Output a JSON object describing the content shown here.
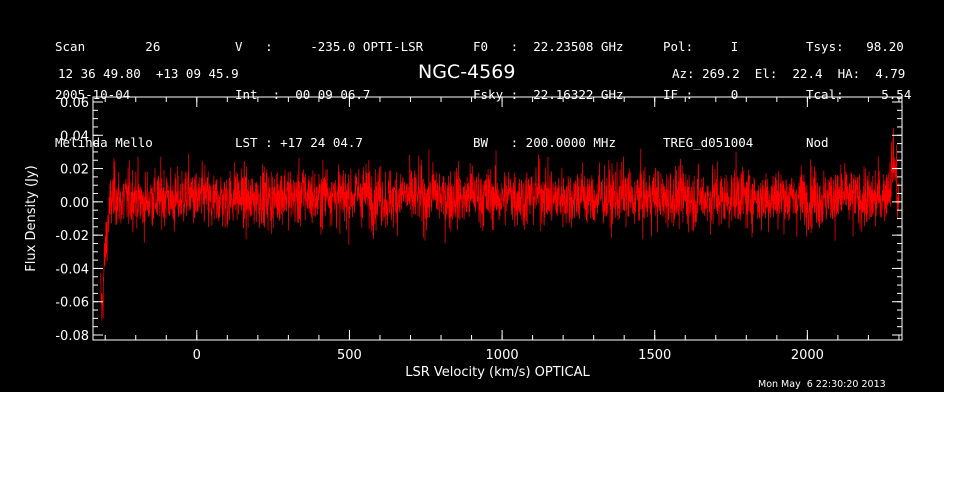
{
  "header": {
    "col1": [
      "Scan        26",
      "2005-10-04",
      "Melinda Mello"
    ],
    "col2": [
      "V   :     -235.0 OPTI-LSR",
      "Int  :  00 09 06.7",
      "LST : +17 24 04.7"
    ],
    "col3": [
      "F0   :  22.23508 GHz",
      "Fsky :  22.16322 GHz",
      "BW   : 200.0000 MHz"
    ],
    "col4": [
      "Pol:     I",
      "IF :     0",
      "TREG_d051004"
    ],
    "col5": [
      "Tsys:   98.20",
      "Tcal:     5.54",
      "Nod"
    ],
    "coords": "12 36 49.80  +13 09 45.9",
    "source": "NGC-4569",
    "azel": "Az: 269.2  El:  22.4  HA:  4.79",
    "timestamp": "Mon May  6 22:30:20 2013"
  },
  "colors": {
    "background": "#000000",
    "axes": "#ffffff",
    "trace": "#ff0000",
    "page": "#ffffff"
  },
  "chart_data": {
    "type": "line",
    "title": "NGC-4569",
    "xlabel": "LSR Velocity (km/s) OPTICAL",
    "ylabel": "Flux Density (Jy)",
    "xlim": [
      -340,
      2310
    ],
    "ylim": [
      -0.083,
      0.063
    ],
    "x_ticks": [
      0,
      500,
      1000,
      1500,
      2000
    ],
    "x_tick_labels": [
      "0",
      "500",
      "1000",
      "1500",
      "2000"
    ],
    "y_ticks": [
      -0.08,
      -0.06,
      -0.04,
      -0.02,
      0.0,
      0.02,
      0.04,
      0.06
    ],
    "y_tick_labels": [
      "-0.08",
      "-0.06",
      "-0.04",
      "-0.02",
      "0.00",
      "0.02",
      "0.04",
      "0.06"
    ],
    "x_minor_step": 100,
    "y_minor_step": 0.005,
    "grid": false,
    "series": [
      {
        "color": "#ff0000",
        "x": [
          -315,
          -310,
          -305,
          -300,
          -295,
          -290,
          -280,
          -270,
          -260,
          -250,
          -225,
          -200,
          -175,
          -150,
          -125,
          -100,
          -75,
          -50,
          -25,
          0,
          25,
          50,
          75,
          100,
          125,
          150,
          175,
          200,
          225,
          250,
          275,
          300,
          325,
          350,
          375,
          400,
          425,
          450,
          475,
          500,
          525,
          550,
          575,
          600,
          625,
          650,
          675,
          700,
          725,
          750,
          775,
          800,
          825,
          850,
          875,
          900,
          925,
          950,
          975,
          1000,
          1025,
          1050,
          1075,
          1100,
          1125,
          1150,
          1175,
          1200,
          1225,
          1250,
          1275,
          1300,
          1325,
          1350,
          1375,
          1400,
          1425,
          1450,
          1475,
          1500,
          1525,
          1550,
          1575,
          1600,
          1625,
          1650,
          1675,
          1700,
          1725,
          1750,
          1775,
          1800,
          1825,
          1850,
          1875,
          1900,
          1925,
          1950,
          1975,
          2000,
          2025,
          2050,
          2075,
          2100,
          2125,
          2150,
          2175,
          2200,
          2225,
          2250,
          2270,
          2280,
          2290,
          2295,
          2300
        ],
        "y": [
          -0.055,
          -0.065,
          -0.045,
          -0.03,
          -0.02,
          -0.01,
          0.0,
          0.005,
          0.003,
          0.0,
          0.002,
          0.004,
          -0.002,
          0.003,
          0.001,
          0.005,
          -0.001,
          0.002,
          0.006,
          0.0,
          0.004,
          -0.002,
          0.003,
          0.001,
          0.005,
          0.002,
          -0.001,
          0.004,
          0.003,
          0.001,
          0.006,
          0.004,
          0.002,
          0.005,
          0.003,
          0.001,
          0.007,
          0.004,
          0.002,
          0.003,
          0.005,
          0.006,
          0.002,
          0.004,
          0.001,
          0.003,
          0.005,
          0.002,
          0.004,
          0.001,
          0.006,
          0.003,
          0.002,
          0.004,
          0.001,
          0.005,
          0.003,
          0.002,
          0.004,
          0.001,
          0.005,
          0.003,
          0.002,
          0.004,
          0.006,
          0.003,
          0.001,
          0.004,
          0.002,
          0.005,
          0.003,
          0.001,
          0.004,
          0.002,
          0.003,
          0.005,
          0.001,
          0.003,
          0.002,
          0.004,
          0.001,
          0.003,
          0.002,
          0.004,
          0.001,
          0.003,
          0.002,
          0.004,
          0.001,
          0.003,
          0.005,
          0.002,
          0.004,
          0.001,
          0.003,
          0.002,
          0.004,
          0.001,
          0.003,
          0.002,
          0.004,
          0.001,
          0.003,
          0.002,
          0.004,
          0.001,
          0.003,
          0.0,
          0.002,
          0.004,
          0.01,
          0.025,
          0.02,
          0.005,
          -0.005
        ]
      }
    ]
  }
}
